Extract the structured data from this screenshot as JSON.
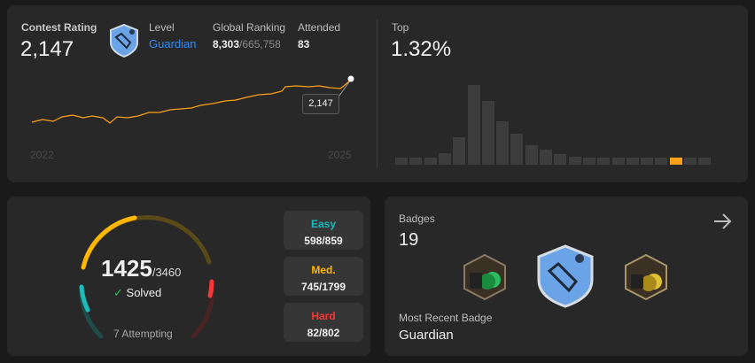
{
  "rating": {
    "label": "Contest Rating",
    "value": "2,147",
    "tooltip": "2,147",
    "year_start": "2022",
    "year_end": "2025"
  },
  "level": {
    "label": "Level",
    "value": "Guardian",
    "icon": "guardian-badge-icon"
  },
  "ranking": {
    "label": "Global Ranking",
    "rank": "8,303",
    "total": "/665,758"
  },
  "attended": {
    "label": "Attended",
    "value": "83"
  },
  "top": {
    "label": "Top",
    "value": "1.32%"
  },
  "distribution": [
    6,
    6,
    6,
    10,
    24,
    70,
    56,
    38,
    27,
    17,
    13,
    9,
    7,
    6,
    6,
    6,
    6,
    6,
    6,
    6,
    6,
    6
  ],
  "distribution_highlight_index": 19,
  "solved": {
    "count": "1425",
    "total": "/3460",
    "label": "Solved",
    "attempting": "7 Attempting"
  },
  "difficulty": [
    {
      "label": "Easy",
      "value": "598/859",
      "color": "#1cbaba"
    },
    {
      "label": "Med.",
      "value": "745/1799",
      "color": "#ffb700"
    },
    {
      "label": "Hard",
      "value": "82/802",
      "color": "#f63737"
    }
  ],
  "badges": {
    "label": "Badges",
    "count": "19",
    "recent_label": "Most Recent Badge",
    "recent_value": "Guardian"
  },
  "colors": {
    "accent": "#ffa116",
    "link": "#2f8cff",
    "easy": "#1cbaba",
    "medium": "#ffb700",
    "hard": "#f63737"
  }
}
